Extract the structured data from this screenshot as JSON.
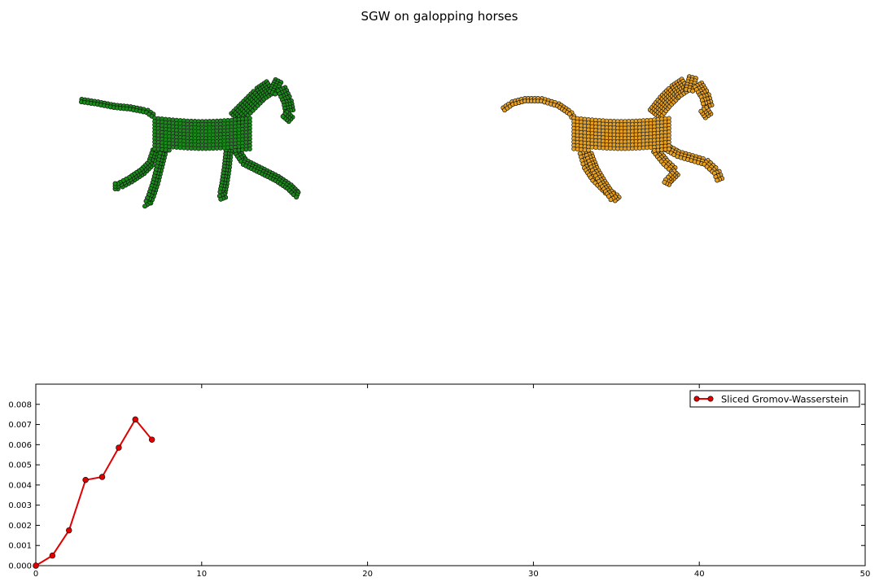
{
  "figure": {
    "title": "SGW on galopping horses"
  },
  "panels": [
    {
      "name": "source horse point cloud",
      "color": "#1a8a1a"
    },
    {
      "name": "target horse point cloud",
      "color": "#e8a020"
    }
  ],
  "chart_data": {
    "type": "line",
    "title": "",
    "xlabel": "",
    "ylabel": "",
    "xlim": [
      0,
      50
    ],
    "ylim": [
      0,
      0.009
    ],
    "xticks": [
      0,
      10,
      20,
      30,
      40,
      50
    ],
    "yticks": [
      0.0,
      0.001,
      0.002,
      0.003,
      0.004,
      0.005,
      0.006,
      0.007,
      0.008
    ],
    "ytick_labels": [
      "0.000",
      "0.001",
      "0.002",
      "0.003",
      "0.004",
      "0.005",
      "0.006",
      "0.007",
      "0.008"
    ],
    "grid": false,
    "legend_position": "top-right",
    "series": [
      {
        "name": "Sliced Gromov-Wasserstein",
        "color": "#e00000",
        "marker": "circle",
        "x": [
          0,
          1,
          2,
          3,
          4,
          5,
          6,
          7
        ],
        "values": [
          0.0,
          0.0005,
          0.00175,
          0.00425,
          0.0044,
          0.00585,
          0.00725,
          0.00625
        ]
      }
    ]
  }
}
